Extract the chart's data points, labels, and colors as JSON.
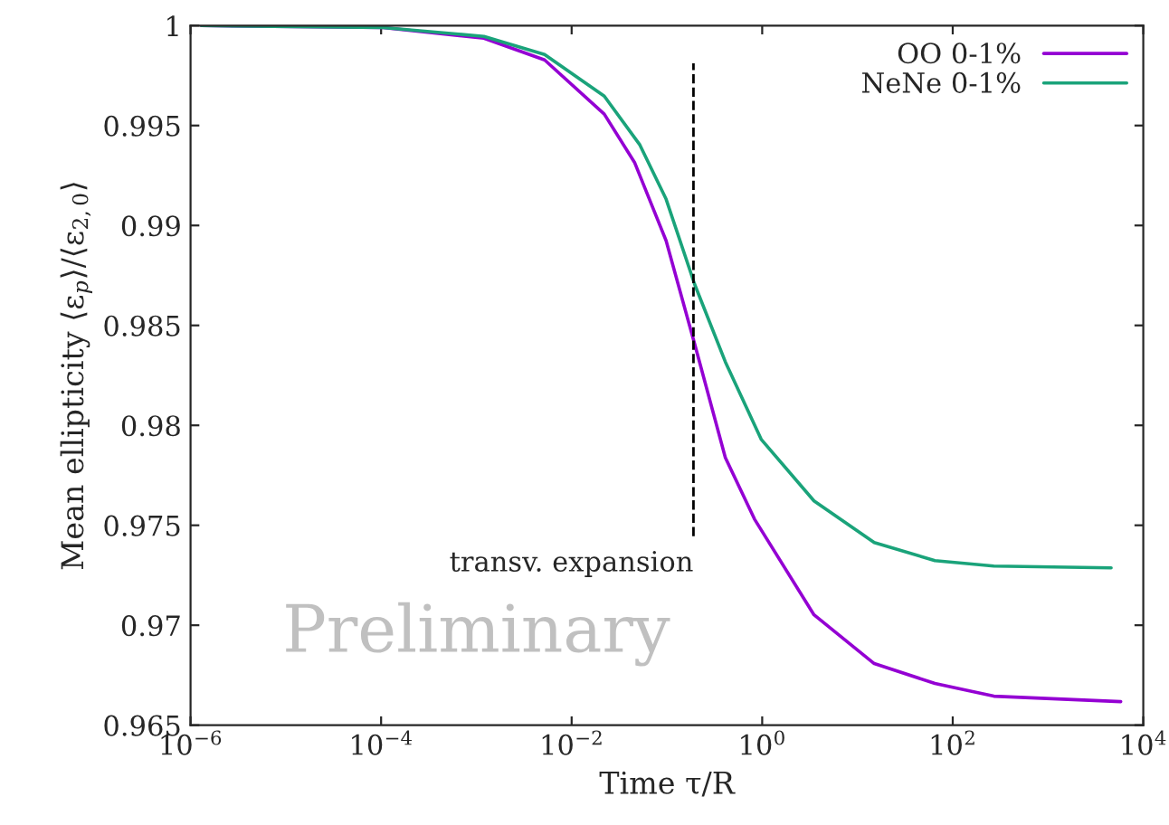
{
  "chart_data": {
    "type": "line",
    "xlabel": "Time τ/R",
    "ylabel": "Mean ellipticity ⟨ε$_{p}$⟩/⟨ε$_{2,0}$⟩",
    "log": "x",
    "grid": false,
    "legend": "top right",
    "marker": "none",
    "line_style": "solid",
    "xlim": [
      1e-06,
      10000.0
    ],
    "ylim": [
      0.965,
      1
    ],
    "xticks": [
      {
        "value": 1e-06,
        "label": "10$^{−6}$"
      },
      {
        "value": 0.0001,
        "label": "10$^{−4}$"
      },
      {
        "value": 0.01,
        "label": "10$^{−2}$"
      },
      {
        "value": 1,
        "label": "10$^{0}$"
      },
      {
        "value": 100,
        "label": "10$^{2}$"
      },
      {
        "value": 10000,
        "label": "10$^{4}$"
      }
    ],
    "yticks": [
      0.965,
      0.97,
      0.975,
      0.98,
      0.985,
      0.99,
      0.995,
      1
    ],
    "series": [
      {
        "name": "OO 0-1%",
        "color": "#9400d3",
        "x": [
          1.3e-06,
          0.000105,
          0.0012,
          0.0052,
          0.022,
          0.046,
          0.098,
          0.195,
          0.41,
          0.83,
          3.5,
          15,
          65,
          270,
          5800
        ],
        "values": [
          1.0,
          0.9999,
          0.99937,
          0.99828,
          0.99557,
          0.99313,
          0.98924,
          0.98409,
          0.97839,
          0.97531,
          0.97052,
          0.96808,
          0.96709,
          0.96645,
          0.96618
        ]
      },
      {
        "name": "NeNe 0-1%",
        "color": "#1aa37a",
        "x": [
          1.3e-06,
          0.000105,
          0.0012,
          0.0052,
          0.022,
          0.052,
          0.098,
          0.195,
          0.41,
          0.98,
          3.5,
          15,
          65,
          270,
          4600
        ],
        "values": [
          1.0,
          0.9999,
          0.99946,
          0.99855,
          0.99647,
          0.99403,
          0.99132,
          0.98707,
          0.98318,
          0.97929,
          0.97622,
          0.97414,
          0.97323,
          0.97296,
          0.97287
        ]
      }
    ],
    "ref_lines": [
      {
        "axis": "x",
        "value": 0.19,
        "label": "transv. expansion",
        "color": "#000000",
        "line_style": "dashed"
      }
    ],
    "annotations": [
      "Preliminary"
    ]
  }
}
